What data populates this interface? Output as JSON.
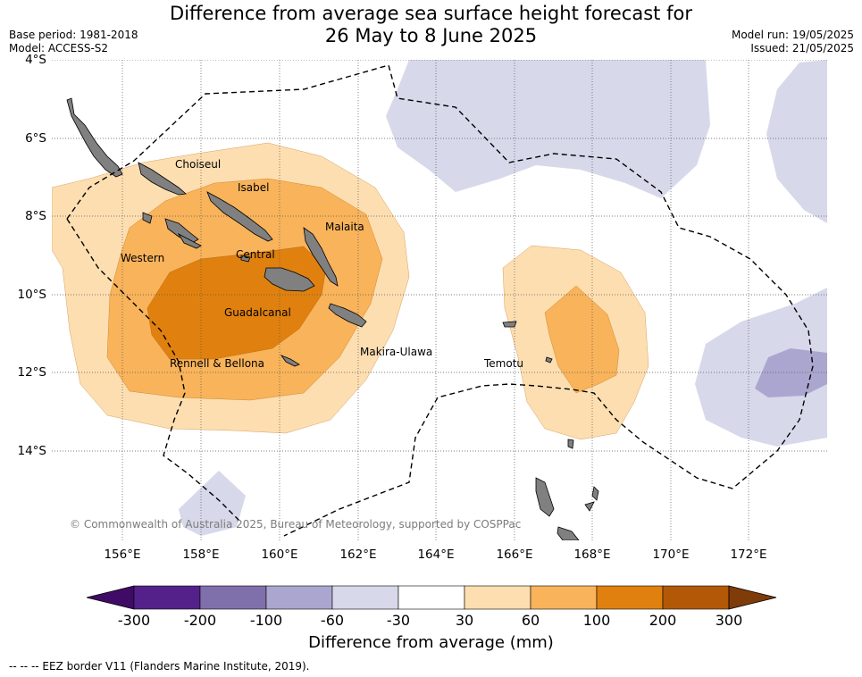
{
  "title_line1": "Difference from average sea surface height forecast for",
  "title_line2": "26 May to 8 June 2025",
  "base_period": "Base period: 1981-2018",
  "model": "Model: ACCESS-S2",
  "model_run": "Model run: 19/05/2025",
  "issued": "Issued: 21/05/2025",
  "lat_labels": [
    "4°S",
    "6°S",
    "8°S",
    "10°S",
    "12°S",
    "14°S"
  ],
  "lon_labels": [
    "156°E",
    "158°E",
    "160°E",
    "162°E",
    "164°E",
    "166°E",
    "168°E",
    "170°E",
    "172°E"
  ],
  "places": {
    "choiseul": "Choiseul",
    "isabel": "Isabel",
    "malaita": "Malaita",
    "western": "Western",
    "central": "Central",
    "guadalcanal": "Guadalcanal",
    "makira": "Makira-Ulawa",
    "rennell": "Rennell & Bellona",
    "temotu": "Temotu"
  },
  "copyright": "© Commonwealth of Australia 2025, Bureau of Meteorology, supported by COSPPac",
  "colorbar": {
    "title": "Difference from average (mm)",
    "ticks": [
      "-300",
      "-200",
      "-100",
      "-60",
      "-30",
      "30",
      "60",
      "100",
      "200",
      "300"
    ],
    "colors": [
      "#3f0b66",
      "#54218a",
      "#7f70ac",
      "#aba6cf",
      "#d7d8ea",
      "#ffffff",
      "#fddeb1",
      "#f8b35b",
      "#e0810f",
      "#b35806",
      "#7f3b08"
    ]
  },
  "eez_note": "--  --  -- EEZ border V11 (Flanders Marine Institute, 2019)."
}
